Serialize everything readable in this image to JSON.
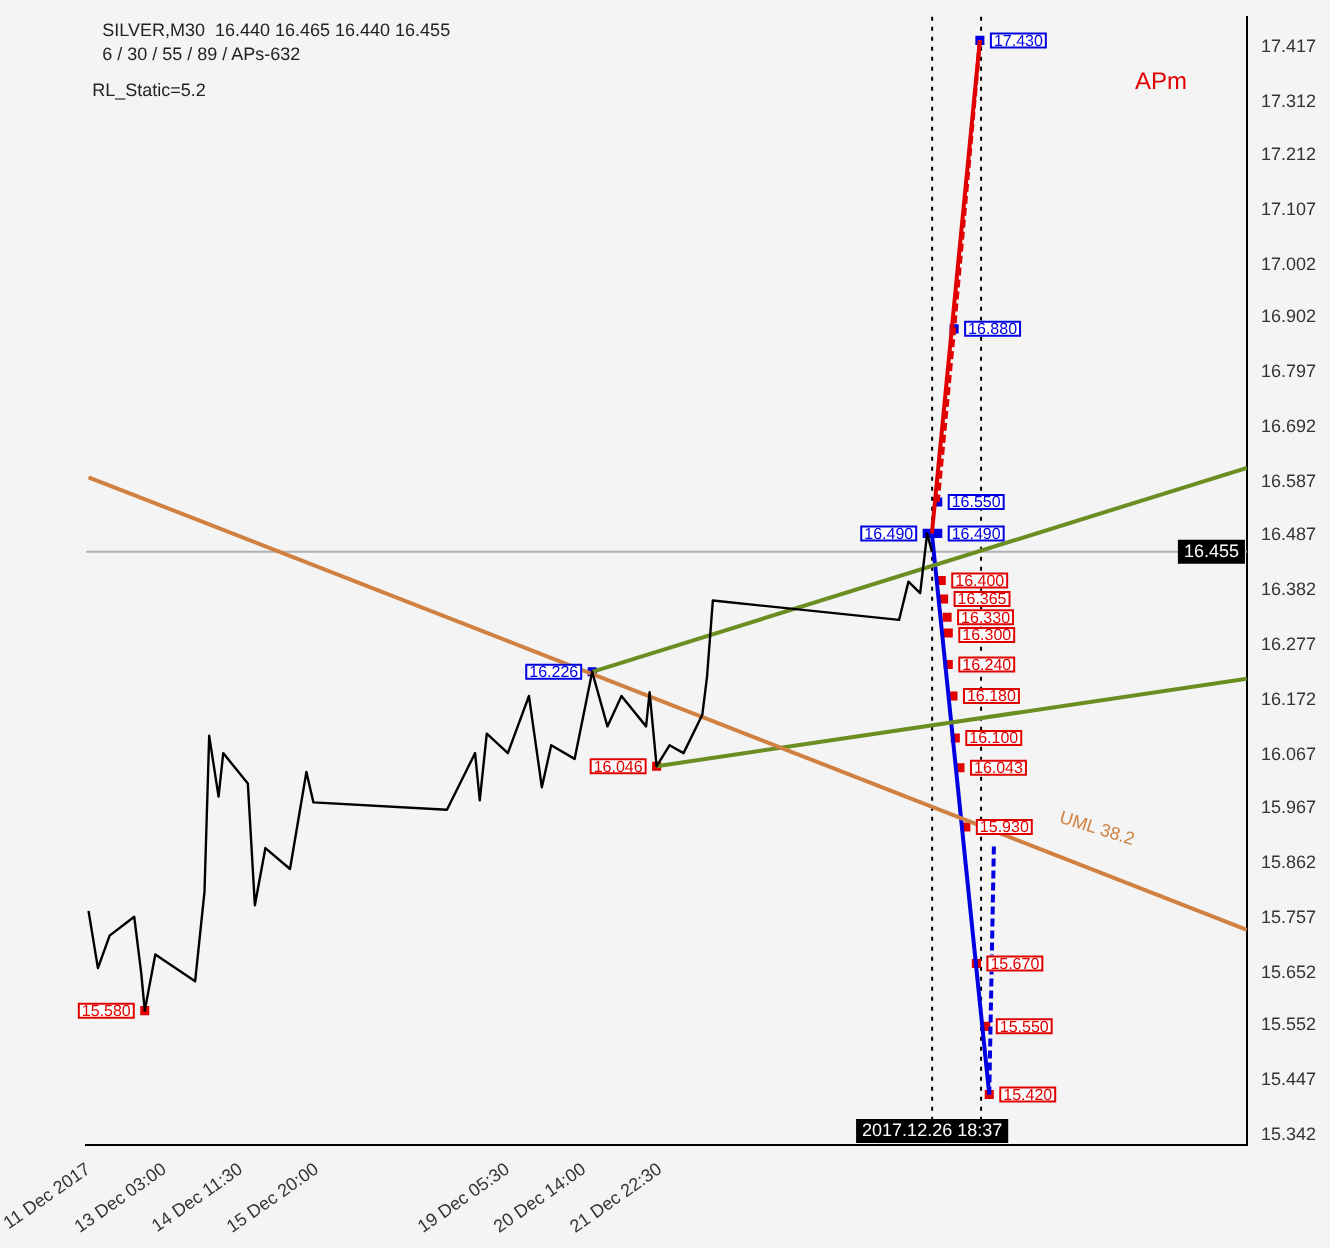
{
  "chart_data": {
    "type": "line",
    "title": "SILVER,M30  16.440 16.465 16.440 16.455",
    "subtitle": "6 / 30 / 55 / 89 / APs-632",
    "annotations": [
      "RL_Static=5.2",
      "APm",
      "UML 38.2"
    ],
    "xlim": [
      "2017-12-11T17:30",
      "2018-01-01T09:00"
    ],
    "ylim": [
      15.324,
      17.475
    ],
    "xticks": [
      {
        "value": "2017-12-11T18:30",
        "label": "11 Dec 2017"
      },
      {
        "value": "2017-12-13T03:00",
        "label": "13 Dec 03:00"
      },
      {
        "value": "2017-12-14T11:30",
        "label": "14 Dec 11:30"
      },
      {
        "value": "2017-12-15T20:00",
        "label": "15 Dec 20:00"
      },
      {
        "value": "2017-12-19T05:30",
        "label": "19 Dec 05:30"
      },
      {
        "value": "2017-12-20T14:00",
        "label": "20 Dec 14:00"
      },
      {
        "value": "2017-12-21T22:30",
        "label": "21 Dec 22:30"
      }
    ],
    "yticks": [
      15.342,
      15.447,
      15.552,
      15.652,
      15.757,
      15.862,
      15.967,
      16.067,
      16.172,
      16.277,
      16.382,
      16.487,
      16.587,
      16.692,
      16.797,
      16.902,
      17.002,
      17.107,
      17.212,
      17.312,
      17.417
    ],
    "grid": false,
    "legend": false,
    "marker": "none",
    "line_style": "solid",
    "series": [
      {
        "color": "#000000",
        "x": [
          "2017-12-11T18:30",
          "2017-12-11T22:30",
          "2017-12-12T03:30",
          "2017-12-12T14:00",
          "2017-12-12T17:00",
          "2017-12-12T18:30",
          "2017-12-12T23:00",
          "2017-12-13T16:00",
          "2017-12-13T20:00",
          "2017-12-13T22:00",
          "2017-12-14T02:00",
          "2017-12-14T04:00",
          "2017-12-14T14:30",
          "2017-12-14T17:30",
          "2017-12-14T22:00",
          "2017-12-15T08:30",
          "2017-12-15T15:30",
          "2017-12-15T18:30",
          "2017-12-18T03:30",
          "2017-12-18T15:30",
          "2017-12-18T17:30",
          "2017-12-18T20:30",
          "2017-12-19T05:30",
          "2017-12-19T14:30",
          "2017-12-19T20:00",
          "2017-12-20T00:00",
          "2017-12-20T10:00",
          "2017-12-20T17:30",
          "2017-12-21T00:00",
          "2017-12-21T06:00",
          "2017-12-21T16:30",
          "2017-12-21T18:00",
          "2017-12-21T21:00",
          "2017-12-22T02:30",
          "2017-12-22T08:30",
          "2017-12-22T16:30",
          "2017-12-22T18:30",
          "2017-12-22T21:00",
          "2017-12-26T04:30",
          "2017-12-26T08:30",
          "2017-12-26T13:30",
          "2017-12-26T16:30",
          "2017-12-26T18:30"
        ],
        "values": [
          15.77,
          15.661,
          15.723,
          15.759,
          15.651,
          15.58,
          15.687,
          15.636,
          15.807,
          16.104,
          15.988,
          16.071,
          16.013,
          15.781,
          15.89,
          15.85,
          16.035,
          15.977,
          15.963,
          16.071,
          15.981,
          16.108,
          16.071,
          16.18,
          16.006,
          16.086,
          16.06,
          16.226,
          16.122,
          16.18,
          16.122,
          16.187,
          16.046,
          16.086,
          16.071,
          16.144,
          16.216,
          16.362,
          16.325,
          16.398,
          16.376,
          16.49,
          16.455
        ]
      },
      {
        "color": "#d08040",
        "x": [
          "2017-12-11T18:30",
          "2018-01-01T09:00"
        ],
        "values": [
          16.597,
          15.734
        ]
      },
      {
        "color": "#6b8e23",
        "x": [
          "2017-12-20T17:30",
          "2018-01-01T09:00"
        ],
        "values": [
          16.226,
          16.615
        ]
      },
      {
        "color": "#6b8e23",
        "x": [
          "2017-12-21T21:00",
          "2018-01-01T09:00"
        ],
        "values": [
          16.046,
          16.213
        ]
      },
      {
        "color": "#e00000",
        "x": [
          "2017-12-26T18:30",
          "2017-12-27T15:00"
        ],
        "values": [
          16.49,
          17.43
        ]
      },
      {
        "color": "#e00000",
        "line_style": "dashed",
        "x": [
          "2017-12-27T15:00",
          "2017-12-27T04:00",
          "2017-12-26T21:00"
        ],
        "values": [
          17.43,
          16.88,
          16.55
        ]
      },
      {
        "color": "#0000e0",
        "x": [
          "2017-12-26T18:30",
          "2017-12-27T19:00"
        ],
        "values": [
          16.49,
          15.42
        ]
      },
      {
        "color": "#0000e0",
        "line_style": "dashed",
        "x": [
          "2017-12-27T19:00",
          "2017-12-27T21:00"
        ],
        "values": [
          15.42,
          15.9
        ]
      },
      {
        "type": "scatter",
        "color": "#e00000",
        "marker": "square",
        "x": [
          "2017-12-12T18:30",
          "2017-12-21T21:00",
          "2017-12-26T22:30",
          "2017-12-26T23:30",
          "2017-12-27T01:00",
          "2017-12-27T01:30",
          "2017-12-27T01:30",
          "2017-12-27T03:30",
          "2017-12-27T04:30",
          "2017-12-27T06:30",
          "2017-12-27T09:00",
          "2017-12-27T13:30",
          "2017-12-27T17:30",
          "2017-12-27T19:00"
        ],
        "values": [
          15.58,
          16.046,
          16.4,
          16.365,
          16.33,
          16.3,
          16.24,
          16.18,
          16.1,
          16.043,
          15.93,
          15.67,
          15.55,
          15.42
        ],
        "value_labels": [
          "15.580",
          "16.046",
          "16.400",
          "16.365",
          "16.330",
          "16.300",
          "16.240",
          "16.180",
          "16.100",
          "16.043",
          "15.930",
          "15.670",
          "15.550",
          "15.420"
        ]
      },
      {
        "type": "scatter",
        "color": "#0000e0",
        "marker": "square",
        "x": [
          "2017-12-20T17:30",
          "2017-12-26T16:30",
          "2017-12-26T21:00",
          "2017-12-26T21:00",
          "2017-12-27T04:00",
          "2017-12-27T15:00"
        ],
        "values": [
          16.226,
          16.49,
          16.49,
          16.55,
          16.88,
          17.43
        ],
        "value_labels": [
          "16.226",
          "16.490",
          "16.490",
          "16.550",
          "16.880",
          "17.430"
        ]
      }
    ],
    "ref_lines": [
      {
        "axis": "y",
        "value": 16.455,
        "label": "16.455",
        "color": "#b0b0b0",
        "line_style": "solid"
      },
      {
        "axis": "x",
        "value": "2017-12-26T18:37",
        "label": "2017.12.26 18:37",
        "color": "#000000",
        "line_style": "dotted"
      },
      {
        "axis": "x",
        "value": "2017-12-27T15:30",
        "label": null,
        "color": "#000000",
        "line_style": "dotted"
      }
    ]
  }
}
